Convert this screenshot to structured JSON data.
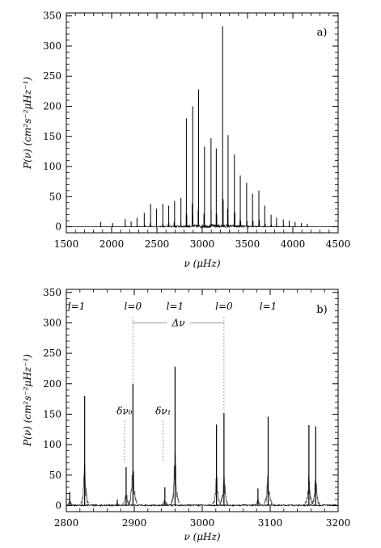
{
  "chart_data": [
    {
      "type": "line",
      "panel_label": "a)",
      "xlabel": "ν (μHz)",
      "ylabel": "P(ν) (cm²s⁻²μHz⁻¹)",
      "xlim": [
        1500,
        4500
      ],
      "ylim": [
        -10,
        355
      ],
      "xticks": [
        "1500",
        "2000",
        "2500",
        "3000",
        "3500",
        "4000",
        "4500"
      ],
      "yticks": [
        "0",
        "50",
        "100",
        "150",
        "200",
        "250",
        "300",
        "350"
      ],
      "grid": false,
      "series": [
        {
          "peaks": [
            {
              "x": 1880,
              "y": 8
            },
            {
              "x": 2010,
              "y": 6
            },
            {
              "x": 2150,
              "y": 13
            },
            {
              "x": 2215,
              "y": 9
            },
            {
              "x": 2280,
              "y": 15
            },
            {
              "x": 2360,
              "y": 23
            },
            {
              "x": 2430,
              "y": 38
            },
            {
              "x": 2495,
              "y": 30
            },
            {
              "x": 2565,
              "y": 38
            },
            {
              "x": 2630,
              "y": 35
            },
            {
              "x": 2695,
              "y": 43
            },
            {
              "x": 2765,
              "y": 48
            },
            {
              "x": 2825,
              "y": 180
            },
            {
              "x": 2895,
              "y": 200
            },
            {
              "x": 2960,
              "y": 228
            },
            {
              "x": 3025,
              "y": 133
            },
            {
              "x": 3097,
              "y": 147
            },
            {
              "x": 3155,
              "y": 130
            },
            {
              "x": 3225,
              "y": 333
            },
            {
              "x": 3285,
              "y": 152
            },
            {
              "x": 3355,
              "y": 120
            },
            {
              "x": 3420,
              "y": 85
            },
            {
              "x": 3490,
              "y": 73
            },
            {
              "x": 3555,
              "y": 55
            },
            {
              "x": 3625,
              "y": 60
            },
            {
              "x": 3690,
              "y": 35
            },
            {
              "x": 3760,
              "y": 20
            },
            {
              "x": 3820,
              "y": 15
            },
            {
              "x": 3895,
              "y": 12
            },
            {
              "x": 3960,
              "y": 10
            },
            {
              "x": 4025,
              "y": 8
            },
            {
              "x": 4095,
              "y": 6
            },
            {
              "x": 4160,
              "y": 5
            }
          ]
        }
      ]
    },
    {
      "type": "line",
      "panel_label": "b)",
      "xlabel": "ν (μHz)",
      "ylabel": "P(ν) (cm²s⁻²μHz⁻¹)",
      "xlim": [
        2800,
        3200
      ],
      "ylim": [
        -10,
        355
      ],
      "xticks": [
        "2800",
        "2900",
        "3000",
        "3100",
        "3200"
      ],
      "yticks": [
        "0",
        "50",
        "100",
        "150",
        "200",
        "250",
        "300",
        "350"
      ],
      "grid": false,
      "degree_labels": [
        {
          "text": "l=1",
          "x": 2815
        },
        {
          "text": "l=0",
          "x": 2898
        },
        {
          "text": "l=1",
          "x": 2960
        },
        {
          "text": "l=0",
          "x": 3032
        },
        {
          "text": "l=1",
          "x": 3097
        }
      ],
      "separation_label": {
        "text": "Δν",
        "x1": 2898,
        "x2": 3032,
        "y": 300
      },
      "small_separations": [
        {
          "text": "δν₀",
          "x": 2888,
          "y": 150
        },
        {
          "text": "δν₁",
          "x": 2945,
          "y": 150
        }
      ],
      "series": [
        {
          "peaks": [
            {
              "x": 2805,
              "y": 22
            },
            {
              "x": 2827,
              "y": 180
            },
            {
              "x": 2875,
              "y": 10
            },
            {
              "x": 2888,
              "y": 63
            },
            {
              "x": 2898,
              "y": 200
            },
            {
              "x": 2945,
              "y": 30
            },
            {
              "x": 2960,
              "y": 228
            },
            {
              "x": 3021,
              "y": 133
            },
            {
              "x": 3032,
              "y": 152
            },
            {
              "x": 3082,
              "y": 28
            },
            {
              "x": 3097,
              "y": 146
            },
            {
              "x": 3157,
              "y": 132
            },
            {
              "x": 3167,
              "y": 130
            }
          ]
        }
      ]
    }
  ]
}
